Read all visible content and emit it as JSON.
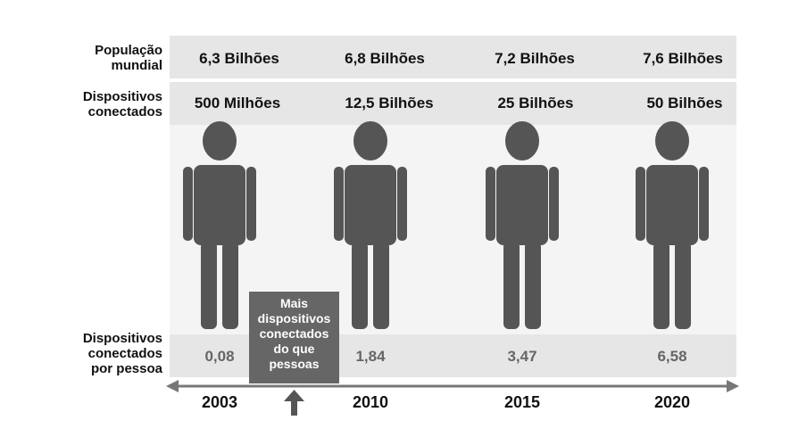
{
  "row_labels": {
    "population": [
      "População",
      "mundial"
    ],
    "devices": [
      "Dispositivos",
      "conectados"
    ],
    "ratio": [
      "Dispositivos",
      "conectados",
      "por pessoa"
    ]
  },
  "columns": [
    {
      "year": "2003",
      "population": "6,3 Bilhões",
      "devices": "500 Milhões",
      "per_person": "0,08"
    },
    {
      "year": "2010",
      "population": "6,8 Bilhões",
      "devices": "12,5 Bilhões",
      "per_person": "1,84"
    },
    {
      "year": "2015",
      "population": "7,2 Bilhões",
      "devices": "25 Bilhões",
      "per_person": "3,47"
    },
    {
      "year": "2020",
      "population": "7,6 Bilhões",
      "devices": "50 Bilhões",
      "per_person": "6,58"
    }
  ],
  "callout": [
    "Mais",
    "dispositivos",
    "conectados",
    "do que",
    "pessoas"
  ],
  "colors": {
    "band": "#e6e6e6",
    "figure": "#555555",
    "callout_bg": "#666666",
    "axis": "#777777"
  },
  "icons": {
    "person": "person-silhouette-icon",
    "arrow_up": "arrow-up-icon"
  }
}
